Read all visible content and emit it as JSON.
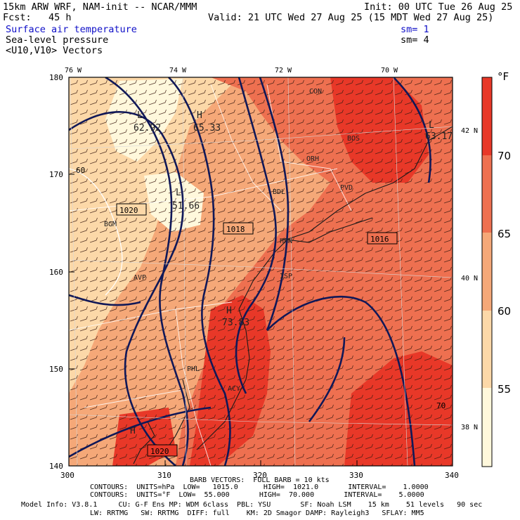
{
  "header": {
    "model": "15km ARW WRF, NAM-init -- NCAR/MMM",
    "init": "Init: 00 UTC Tue 26 Aug 25",
    "fcst": "Fcst:   45 h",
    "valid": "Valid: 21 UTC Wed 27 Aug 25 (15 MDT Wed 27 Aug 25)",
    "fields": [
      {
        "name": "Surface air temperature",
        "sm": "sm= 1"
      },
      {
        "name": "Sea-level pressure",
        "sm": "sm= 4"
      },
      {
        "name": "<U10,V10> Vectors",
        "sm": ""
      }
    ]
  },
  "axes": {
    "x_ticks": [
      "300",
      "310",
      "320",
      "330",
      "340"
    ],
    "y_ticks": [
      "140",
      "150",
      "160",
      "170",
      "180"
    ],
    "lon_labels": [
      "76 W",
      "74 W",
      "72 W",
      "70 W"
    ],
    "lat_labels": [
      "42 N",
      "40 N",
      "38 N"
    ]
  },
  "colorbar": {
    "unit": "°F",
    "levels": [
      "55",
      "60",
      "65",
      "70"
    ],
    "colors": [
      "#fff8dc",
      "#fcd8a8",
      "#f5a878",
      "#ee7050",
      "#e83828"
    ]
  },
  "map_labels": {
    "highs_lows": [
      {
        "letter": "L",
        "value": "62.92"
      },
      {
        "letter": "H",
        "value": "65.33"
      },
      {
        "letter": "L",
        "value": "51.66"
      },
      {
        "letter": "H",
        "value": "73.83"
      },
      {
        "letter": "L",
        "value": "63.17"
      },
      {
        "letter": "H",
        "value": ""
      }
    ],
    "isobars": [
      "1020",
      "1018",
      "1016",
      "1020"
    ],
    "contour_numbers": [
      "60",
      "70"
    ],
    "stations": [
      "BGM",
      "AVP",
      "ORH",
      "BDL",
      "PVD",
      "HPN",
      "ISP",
      "PHL",
      "ACY",
      "BOS",
      "CON"
    ]
  },
  "footer": {
    "barb": "BARB VECTORS:  FULL BARB = 10 kts",
    "contours_hpa": "CONTOURS:  UNITS=hPa  LOW=   1015.0      HIGH=  1021.0       INTERVAL=    1.0000",
    "contours_f": "CONTOURS:  UNITS=°F  LOW=  55.000       HIGH=  70.000       INTERVAL=    5.0000",
    "model_info": "Model Info: V3.8.1     CU: G-F Ens MP: WDM 6class  PBL: YSU       SF: Noah LSM    15 km    51 levels   90 sec",
    "model_info2": "LW: RRTMG   SW: RRTMG  DIFF: full    KM: 2D Smagor DAMP: Rayleigh3   SFLAY: MM5"
  }
}
